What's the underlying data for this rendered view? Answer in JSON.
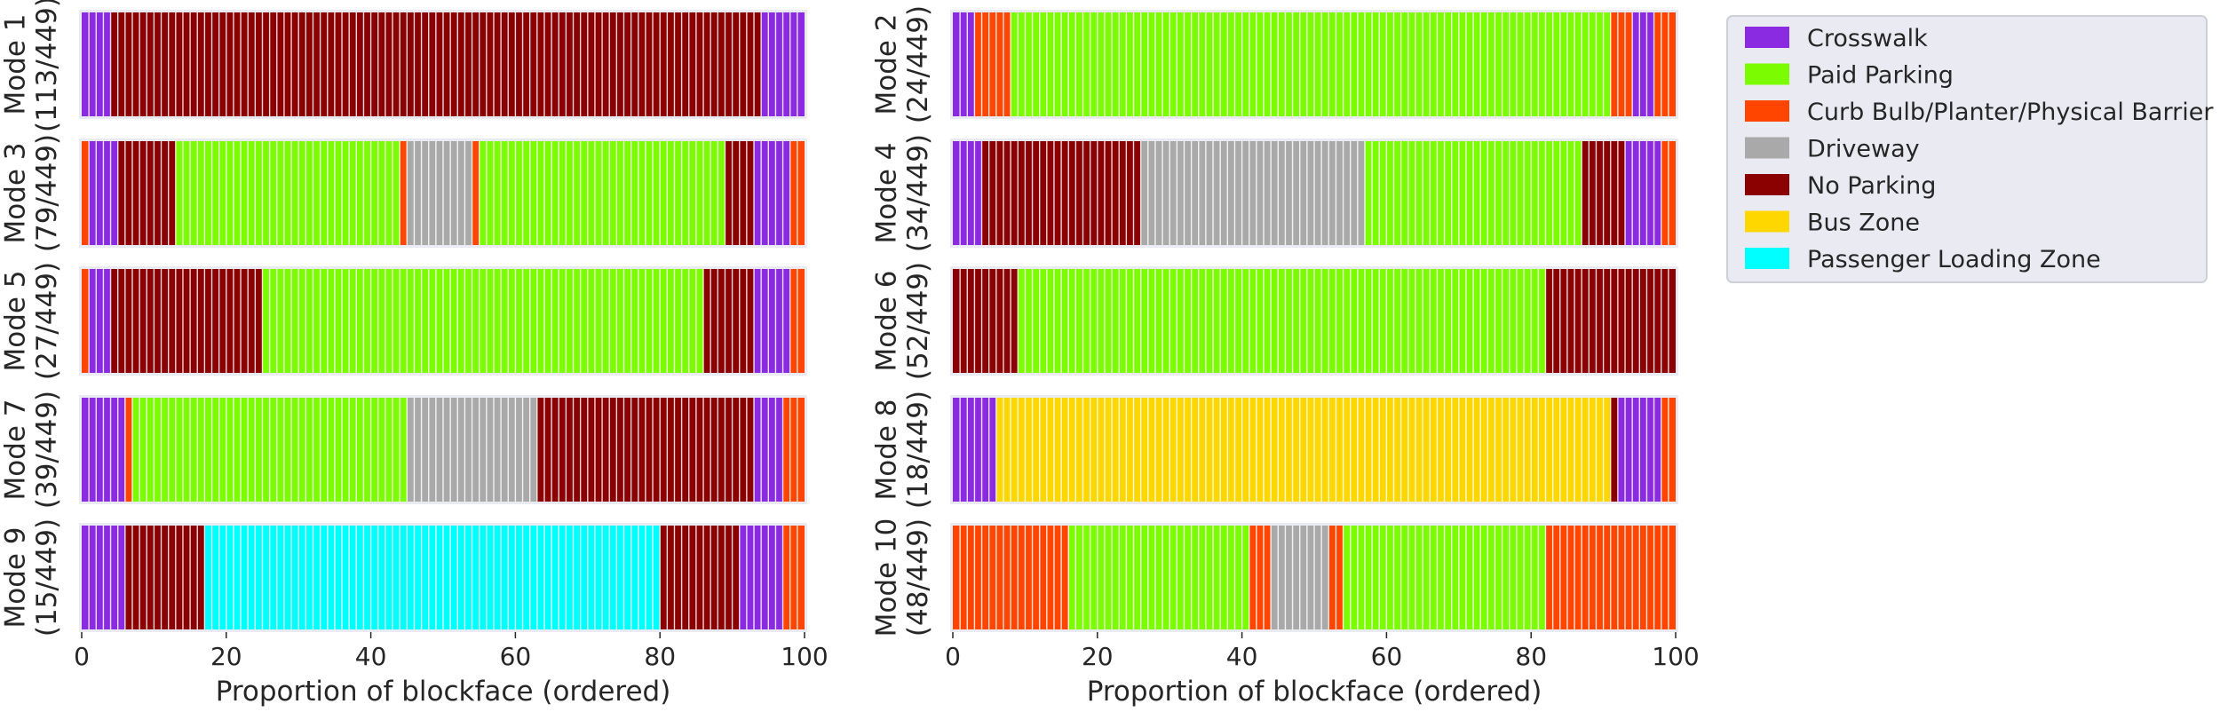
{
  "colors": {
    "Crosswalk": "#8a2be2",
    "Paid Parking": "#7cfc00",
    "Curb Bulb/Planter/Physical Barrier": "#ff4500",
    "Driveway": "#a9a9a9",
    "No Parking": "#8b0000",
    "Bus Zone": "#ffd700",
    "Passenger Loading Zone": "#00ffff"
  },
  "chart_data": {
    "type": "bar",
    "subtype": "stacked-horizontal-proportion",
    "xlabel": "Proportion of blockface (ordered)",
    "xlim": [
      0,
      100
    ],
    "xticks": [
      "0",
      "20",
      "40",
      "60",
      "80",
      "100"
    ],
    "grid": true,
    "legend_position": "right",
    "legend": [
      "Crosswalk",
      "Paid Parking",
      "Curb Bulb/Planter/Physical Barrier",
      "Driveway",
      "No Parking",
      "Bus Zone",
      "Passenger Loading Zone"
    ],
    "modes": [
      {
        "label": [
          "Mode 1",
          "(113/449)"
        ],
        "segments": [
          {
            "category": "Crosswalk",
            "start": 0,
            "end": 4
          },
          {
            "category": "No Parking",
            "start": 4,
            "end": 94
          },
          {
            "category": "Crosswalk",
            "start": 94,
            "end": 100
          }
        ]
      },
      {
        "label": [
          "Mode 2",
          "(24/449)"
        ],
        "segments": [
          {
            "category": "Crosswalk",
            "start": 0,
            "end": 3
          },
          {
            "category": "Curb Bulb/Planter/Physical Barrier",
            "start": 3,
            "end": 8
          },
          {
            "category": "Paid Parking",
            "start": 8,
            "end": 91
          },
          {
            "category": "Curb Bulb/Planter/Physical Barrier",
            "start": 91,
            "end": 94
          },
          {
            "category": "Crosswalk",
            "start": 94,
            "end": 97
          },
          {
            "category": "Curb Bulb/Planter/Physical Barrier",
            "start": 97,
            "end": 100
          }
        ]
      },
      {
        "label": [
          "Mode 3",
          "(79/449)"
        ],
        "segments": [
          {
            "category": "Curb Bulb/Planter/Physical Barrier",
            "start": 0,
            "end": 1
          },
          {
            "category": "Crosswalk",
            "start": 1,
            "end": 5
          },
          {
            "category": "No Parking",
            "start": 5,
            "end": 13
          },
          {
            "category": "Paid Parking",
            "start": 13,
            "end": 44
          },
          {
            "category": "Curb Bulb/Planter/Physical Barrier",
            "start": 44,
            "end": 45
          },
          {
            "category": "Driveway",
            "start": 45,
            "end": 54
          },
          {
            "category": "Curb Bulb/Planter/Physical Barrier",
            "start": 54,
            "end": 55
          },
          {
            "category": "Paid Parking",
            "start": 55,
            "end": 89
          },
          {
            "category": "No Parking",
            "start": 89,
            "end": 93
          },
          {
            "category": "Crosswalk",
            "start": 93,
            "end": 98
          },
          {
            "category": "Curb Bulb/Planter/Physical Barrier",
            "start": 98,
            "end": 100
          }
        ]
      },
      {
        "label": [
          "Mode 4",
          "(34/449)"
        ],
        "segments": [
          {
            "category": "Crosswalk",
            "start": 0,
            "end": 4
          },
          {
            "category": "No Parking",
            "start": 4,
            "end": 26
          },
          {
            "category": "Driveway",
            "start": 26,
            "end": 57
          },
          {
            "category": "Paid Parking",
            "start": 57,
            "end": 87
          },
          {
            "category": "No Parking",
            "start": 87,
            "end": 93
          },
          {
            "category": "Crosswalk",
            "start": 93,
            "end": 98
          },
          {
            "category": "Curb Bulb/Planter/Physical Barrier",
            "start": 98,
            "end": 100
          }
        ]
      },
      {
        "label": [
          "Mode 5",
          "(27/449)"
        ],
        "segments": [
          {
            "category": "Curb Bulb/Planter/Physical Barrier",
            "start": 0,
            "end": 1
          },
          {
            "category": "Crosswalk",
            "start": 1,
            "end": 4
          },
          {
            "category": "No Parking",
            "start": 4,
            "end": 25
          },
          {
            "category": "Paid Parking",
            "start": 25,
            "end": 86
          },
          {
            "category": "No Parking",
            "start": 86,
            "end": 93
          },
          {
            "category": "Crosswalk",
            "start": 93,
            "end": 98
          },
          {
            "category": "Curb Bulb/Planter/Physical Barrier",
            "start": 98,
            "end": 100
          }
        ]
      },
      {
        "label": [
          "Mode 6",
          "(52/449)"
        ],
        "segments": [
          {
            "category": "No Parking",
            "start": 0,
            "end": 9
          },
          {
            "category": "Paid Parking",
            "start": 9,
            "end": 82
          },
          {
            "category": "No Parking",
            "start": 82,
            "end": 100
          }
        ]
      },
      {
        "label": [
          "Mode 7",
          "(39/449)"
        ],
        "segments": [
          {
            "category": "Crosswalk",
            "start": 0,
            "end": 6
          },
          {
            "category": "Curb Bulb/Planter/Physical Barrier",
            "start": 6,
            "end": 7
          },
          {
            "category": "Paid Parking",
            "start": 7,
            "end": 45
          },
          {
            "category": "Driveway",
            "start": 45,
            "end": 63
          },
          {
            "category": "No Parking",
            "start": 63,
            "end": 93
          },
          {
            "category": "Crosswalk",
            "start": 93,
            "end": 97
          },
          {
            "category": "Curb Bulb/Planter/Physical Barrier",
            "start": 97,
            "end": 100
          }
        ]
      },
      {
        "label": [
          "Mode 8",
          "(18/449)"
        ],
        "segments": [
          {
            "category": "Crosswalk",
            "start": 0,
            "end": 6
          },
          {
            "category": "Bus Zone",
            "start": 6,
            "end": 91
          },
          {
            "category": "No Parking",
            "start": 91,
            "end": 92
          },
          {
            "category": "Crosswalk",
            "start": 92,
            "end": 98
          },
          {
            "category": "Curb Bulb/Planter/Physical Barrier",
            "start": 98,
            "end": 100
          }
        ]
      },
      {
        "label": [
          "Mode 9",
          "(15/449)"
        ],
        "segments": [
          {
            "category": "Crosswalk",
            "start": 0,
            "end": 6
          },
          {
            "category": "No Parking",
            "start": 6,
            "end": 17
          },
          {
            "category": "Passenger Loading Zone",
            "start": 17,
            "end": 80
          },
          {
            "category": "No Parking",
            "start": 80,
            "end": 91
          },
          {
            "category": "Crosswalk",
            "start": 91,
            "end": 97
          },
          {
            "category": "Curb Bulb/Planter/Physical Barrier",
            "start": 97,
            "end": 100
          }
        ]
      },
      {
        "label": [
          "Mode 10",
          "(48/449)"
        ],
        "segments": [
          {
            "category": "Curb Bulb/Planter/Physical Barrier",
            "start": 0,
            "end": 16
          },
          {
            "category": "Paid Parking",
            "start": 16,
            "end": 41
          },
          {
            "category": "Curb Bulb/Planter/Physical Barrier",
            "start": 41,
            "end": 44
          },
          {
            "category": "Driveway",
            "start": 44,
            "end": 52
          },
          {
            "category": "Curb Bulb/Planter/Physical Barrier",
            "start": 52,
            "end": 54
          },
          {
            "category": "Paid Parking",
            "start": 54,
            "end": 82
          },
          {
            "category": "Curb Bulb/Planter/Physical Barrier",
            "start": 82,
            "end": 100
          }
        ]
      }
    ]
  }
}
